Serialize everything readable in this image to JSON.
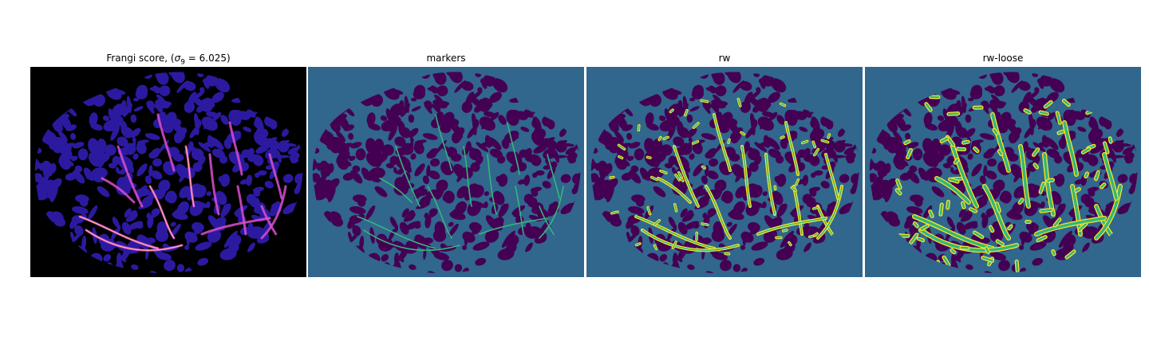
{
  "panels": [
    {
      "title_prefix": "Frangi score, (",
      "title_symbol": "σ",
      "title_subscript": "9",
      "title_suffix": " = 6.025)",
      "background": "#000000",
      "blob_color": "#2b1aa0",
      "vessel_color": "#d94fd0",
      "vessel_highlight": "#ffb0a0"
    },
    {
      "title": "markers",
      "background": "#31668d",
      "blob_color": "#440154",
      "vessel_color": "#35b779"
    },
    {
      "title": "rw",
      "background": "#31668d",
      "blob_color": "#440154",
      "vessel_color": "#35b779",
      "outline_color": "#fde725"
    },
    {
      "title": "rw-loose",
      "background": "#31668d",
      "blob_color": "#440154",
      "vessel_color": "#35b779",
      "outline_color": "#fde725"
    }
  ]
}
